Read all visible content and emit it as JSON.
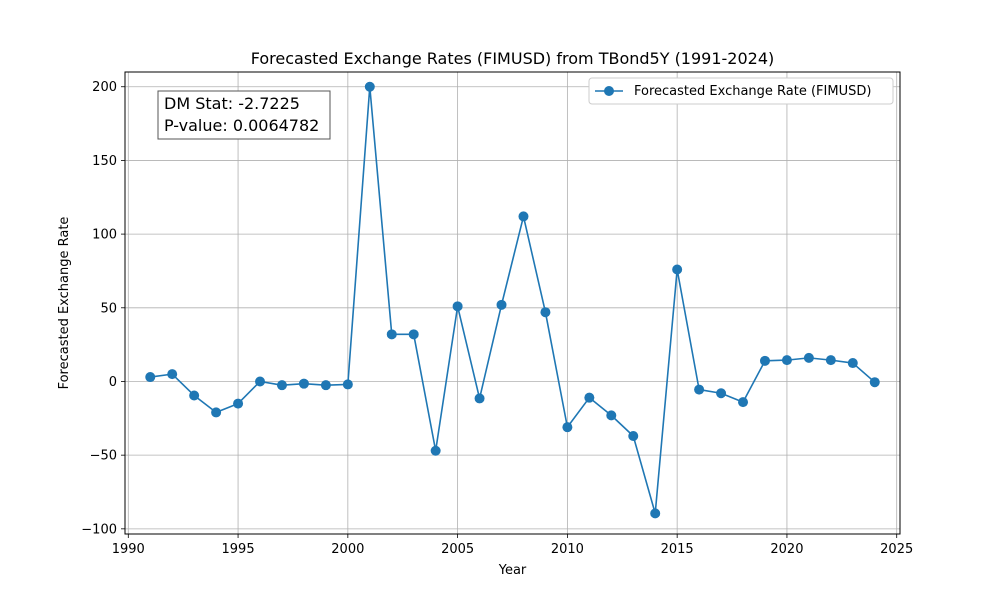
{
  "chart_data": {
    "type": "line",
    "title": "Forecasted Exchange Rates (FIMUSD) from TBond5Y (1991-2024)",
    "xlabel": "Year",
    "ylabel": "Forecasted Exchange Rate",
    "xlim": [
      1989.85,
      2025.15
    ],
    "ylim": [
      -103.5,
      210
    ],
    "x_ticks": [
      1990,
      1995,
      2000,
      2005,
      2010,
      2015,
      2020,
      2025
    ],
    "x_tick_labels": [
      "1990",
      "1995",
      "2000",
      "2005",
      "2010",
      "2015",
      "2020",
      "2025"
    ],
    "y_ticks": [
      -100,
      -50,
      0,
      50,
      100,
      150,
      200
    ],
    "y_tick_labels": [
      "−100",
      "−50",
      "0",
      "50",
      "100",
      "150",
      "200"
    ],
    "grid": true,
    "legend_position": "top-right",
    "series": [
      {
        "name": "Forecasted Exchange Rate (FIMUSD)",
        "color": "#1f77b4",
        "marker": "circle",
        "x": [
          1991,
          1992,
          1993,
          1994,
          1995,
          1996,
          1997,
          1998,
          1999,
          2000,
          2001,
          2002,
          2003,
          2004,
          2005,
          2006,
          2007,
          2008,
          2009,
          2010,
          2011,
          2012,
          2013,
          2014,
          2015,
          2016,
          2017,
          2018,
          2019,
          2020,
          2021,
          2022,
          2023,
          2024
        ],
        "values": [
          3,
          5,
          -9.5,
          -21,
          -15,
          0,
          -2.5,
          -1.5,
          -2.5,
          -2,
          200,
          32,
          32,
          -47,
          51,
          -11.5,
          52,
          112,
          47,
          -31,
          -11,
          -23,
          -37,
          -89.5,
          76,
          -5.5,
          -8,
          -14,
          14,
          14.5,
          16,
          14.5,
          12.5,
          -0.5
        ]
      }
    ],
    "annotation": {
      "line1": "DM Stat: -2.7225",
      "line2": "P-value: 0.0064782"
    }
  }
}
